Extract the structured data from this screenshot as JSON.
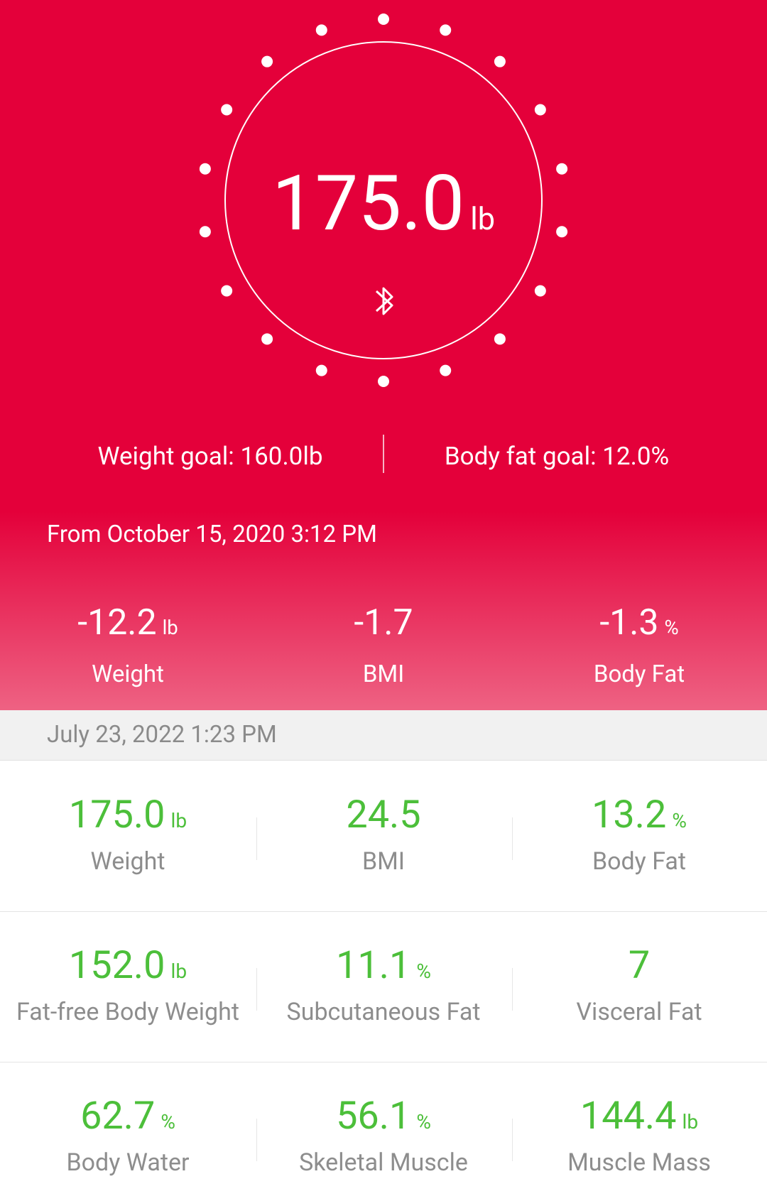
{
  "header": {
    "weight": "175.0",
    "unit": "lb",
    "weight_goal": "Weight goal: 160.0lb",
    "body_fat_goal": "Body fat goal: 12.0%",
    "since": "From October 15, 2020 3:12 PM",
    "changes": [
      {
        "value": "-12.2",
        "unit": "lb",
        "label": "Weight"
      },
      {
        "value": "-1.7",
        "label": "BMI"
      },
      {
        "value": "-1.3",
        "unit": "%",
        "label": "Body Fat"
      }
    ]
  },
  "record": {
    "date": "July 23, 2022 1:23 PM",
    "rows": [
      [
        {
          "value": "175.0",
          "unit": "lb",
          "label": "Weight"
        },
        {
          "value": "24.5",
          "label": "BMI"
        },
        {
          "value": "13.2",
          "unit": "%",
          "label": "Body Fat"
        }
      ],
      [
        {
          "value": "152.0",
          "unit": "lb",
          "label": "Fat-free Body Weight"
        },
        {
          "value": "11.1",
          "unit": "%",
          "label": "Subcutaneous Fat"
        },
        {
          "value": "7",
          "label": "Visceral Fat"
        }
      ],
      [
        {
          "value": "62.7",
          "unit": "%",
          "label": "Body Water"
        },
        {
          "value": "56.1",
          "unit": "%",
          "label": "Skeletal Muscle"
        },
        {
          "value": "144.4",
          "unit": "lb",
          "label": "Muscle Mass"
        }
      ]
    ]
  }
}
